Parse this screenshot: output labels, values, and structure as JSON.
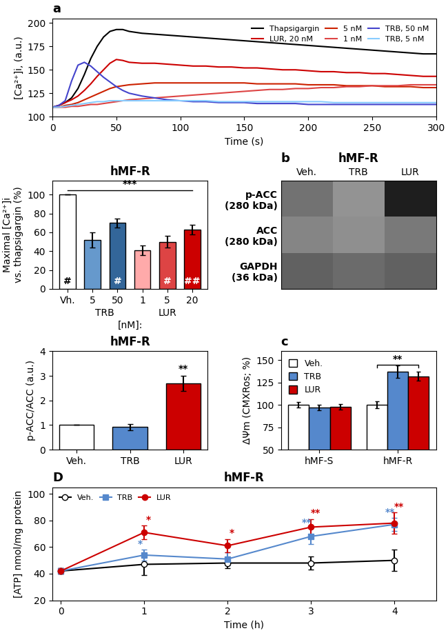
{
  "chart_data": [
    {
      "type": "line",
      "panel_label": "a",
      "xlabel": "Time (s)",
      "ylabel": "[Ca²⁺]i, (a.u.)",
      "x": [
        0,
        5,
        10,
        15,
        20,
        25,
        30,
        35,
        40,
        45,
        50,
        55,
        60,
        70,
        80,
        90,
        100,
        110,
        120,
        130,
        140,
        150,
        160,
        170,
        180,
        190,
        200,
        210,
        220,
        230,
        240,
        250,
        260,
        270,
        280,
        290,
        300
      ],
      "xlim": [
        0,
        300
      ],
      "xticks": [
        0,
        50,
        100,
        150,
        200,
        250,
        300
      ],
      "ylim": [
        100,
        205
      ],
      "yticks": [
        100,
        125,
        150,
        175,
        200
      ],
      "legend": "upper right",
      "series": [
        {
          "name": "Thapsigargin",
          "color": "#000000",
          "values": [
            110,
            112,
            115,
            120,
            130,
            145,
            162,
            175,
            185,
            191,
            193,
            193,
            191,
            189,
            188,
            187,
            186,
            185,
            184,
            183,
            182,
            181,
            180,
            179,
            178,
            177,
            176,
            175,
            174,
            173,
            172,
            171,
            170,
            169,
            168,
            167,
            167
          ]
        },
        {
          "name": "LUR, 20 nM",
          "color": "#cc0000",
          "values": [
            110,
            112,
            115,
            118,
            122,
            128,
            135,
            143,
            150,
            157,
            161,
            160,
            158,
            157,
            157,
            156,
            155,
            154,
            154,
            153,
            153,
            152,
            152,
            151,
            150,
            150,
            149,
            148,
            148,
            147,
            147,
            146,
            146,
            145,
            144,
            143,
            143
          ]
        },
        {
          "name": "5 nM",
          "color": "#cc2200",
          "values": [
            110,
            110,
            112,
            113,
            115,
            118,
            121,
            124,
            127,
            130,
            132,
            133,
            134,
            135,
            136,
            136,
            136,
            136,
            136,
            136,
            136,
            136,
            135,
            135,
            135,
            135,
            134,
            134,
            134,
            133,
            133,
            133,
            132,
            132,
            132,
            131,
            131
          ]
        },
        {
          "name": "1 nM",
          "color": "#dd4444",
          "values": [
            110,
            110,
            110,
            111,
            111,
            112,
            113,
            113,
            114,
            115,
            116,
            117,
            118,
            119,
            120,
            121,
            122,
            123,
            124,
            125,
            126,
            127,
            128,
            129,
            129,
            130,
            130,
            131,
            131,
            132,
            132,
            133,
            133,
            133,
            134,
            134,
            134
          ]
        },
        {
          "name": "TRB, 50 nM",
          "color": "#4444cc",
          "values": [
            110,
            112,
            117,
            138,
            155,
            158,
            154,
            148,
            142,
            137,
            132,
            128,
            125,
            122,
            120,
            118,
            117,
            116,
            116,
            115,
            115,
            115,
            114,
            114,
            114,
            114,
            113,
            113,
            113,
            113,
            113,
            113,
            113,
            113,
            113,
            113,
            113
          ]
        },
        {
          "name": "TRB, 5 nM",
          "color": "#88ccff",
          "values": [
            110,
            110,
            111,
            112,
            113,
            114,
            115,
            116,
            116,
            117,
            117,
            117,
            117,
            117,
            117,
            117,
            117,
            117,
            117,
            116,
            116,
            116,
            116,
            116,
            116,
            116,
            116,
            116,
            115,
            115,
            115,
            115,
            115,
            115,
            115,
            115,
            115
          ]
        }
      ]
    },
    {
      "type": "bar",
      "title": "hMF-R",
      "ylabel": "Maximal [Ca²⁺]i\nvs. thapsigargin (%)",
      "xlabel": "[nM]:",
      "categories": [
        "Vh.",
        "5",
        "50",
        "1",
        "5",
        "20"
      ],
      "groups": [
        null,
        "TRB",
        "TRB",
        "LUR",
        "LUR",
        "LUR"
      ],
      "values": [
        100,
        52,
        70,
        41,
        50,
        63
      ],
      "errors": [
        0,
        8,
        5,
        5,
        6,
        5
      ],
      "colors": [
        "#ffffff",
        "#6699cc",
        "#336699",
        "#ffaaaa",
        "#dd4444",
        "#cc0000"
      ],
      "annotations": [
        "#",
        null,
        "#",
        null,
        "#",
        "##"
      ],
      "bracket": {
        "text": "***",
        "y": 105
      },
      "ylim": [
        0,
        115
      ],
      "yticks": [
        0,
        20,
        40,
        60,
        80,
        100
      ]
    },
    {
      "type": "heatmap",
      "panel_label": "b",
      "title": "hMF-R",
      "columns": [
        "Veh.",
        "TRB",
        "LUR"
      ],
      "rows": [
        "p-ACC\n(280 kDa)",
        "ACC\n(280 kDa)",
        "GAPDH\n(36 kDa)"
      ],
      "cells": [
        [
          0.55,
          0.42,
          0.88
        ],
        [
          0.48,
          0.44,
          0.52
        ],
        [
          0.62,
          0.58,
          0.62
        ]
      ],
      "clim": [
        0,
        1
      ]
    },
    {
      "type": "bar",
      "title": "hMF-R",
      "ylabel": "p-ACC/ACC (a.u.)",
      "categories": [
        "Veh.",
        "TRB",
        "LUR"
      ],
      "values": [
        1.0,
        0.92,
        2.7
      ],
      "errors": [
        0,
        0.12,
        0.3
      ],
      "colors": [
        "#ffffff",
        "#5588cc",
        "#cc0000"
      ],
      "annotations": [
        null,
        null,
        "**"
      ],
      "ylim": [
        0,
        4
      ],
      "yticks": [
        0,
        1,
        2,
        3,
        4
      ]
    },
    {
      "type": "bar",
      "panel_label": "c",
      "ylabel": "ΔΨm (CMXRos; %)",
      "categories": [
        "hMF-S",
        "hMF-R"
      ],
      "series": [
        {
          "name": "Veh.",
          "color": "#ffffff",
          "values": [
            100,
            100
          ],
          "errors": [
            3,
            4
          ]
        },
        {
          "name": "TRB",
          "color": "#5588cc",
          "values": [
            97,
            137
          ],
          "errors": [
            3,
            7
          ]
        },
        {
          "name": "LUR",
          "color": "#cc0000",
          "values": [
            98,
            132
          ],
          "errors": [
            3,
            5
          ]
        }
      ],
      "bracket": {
        "text": "**",
        "y": 145,
        "category": "hMF-R"
      },
      "legend": "upper left",
      "ylim": [
        50,
        160
      ],
      "yticks": [
        50,
        75,
        100,
        125,
        150
      ]
    },
    {
      "type": "line",
      "panel_label": "D",
      "title": "hMF-R",
      "xlabel": "Time (h)",
      "ylabel": "[ATP] nmol/mg protein",
      "xlim": [
        -0.1,
        4.5
      ],
      "xticks": [
        0,
        1,
        2,
        3,
        4
      ],
      "ylim": [
        20,
        105
      ],
      "yticks": [
        20,
        40,
        60,
        80,
        100
      ],
      "legend": "upper left",
      "series": [
        {
          "name": "Veh.",
          "color": "#000000",
          "marker": "open_circle",
          "x": [
            0,
            1,
            2,
            3,
            4
          ],
          "values": [
            42,
            47,
            48,
            48,
            50
          ],
          "errors": [
            2,
            8,
            4,
            5,
            8
          ]
        },
        {
          "name": "TRB",
          "color": "#5588cc",
          "marker": "square",
          "x": [
            0,
            1,
            2,
            3,
            4
          ],
          "values": [
            42,
            54,
            51,
            68,
            77
          ],
          "errors": [
            2,
            4,
            5,
            6,
            5
          ],
          "annotations": [
            null,
            "*",
            null,
            "**",
            "**"
          ]
        },
        {
          "name": "LUR",
          "color": "#cc0000",
          "marker": "circle",
          "x": [
            0,
            1,
            2,
            3,
            4
          ],
          "values": [
            42,
            71,
            61,
            75,
            78
          ],
          "errors": [
            2,
            5,
            5,
            6,
            8
          ],
          "annotations": [
            null,
            "*",
            "*",
            "**",
            "**"
          ]
        }
      ]
    }
  ]
}
